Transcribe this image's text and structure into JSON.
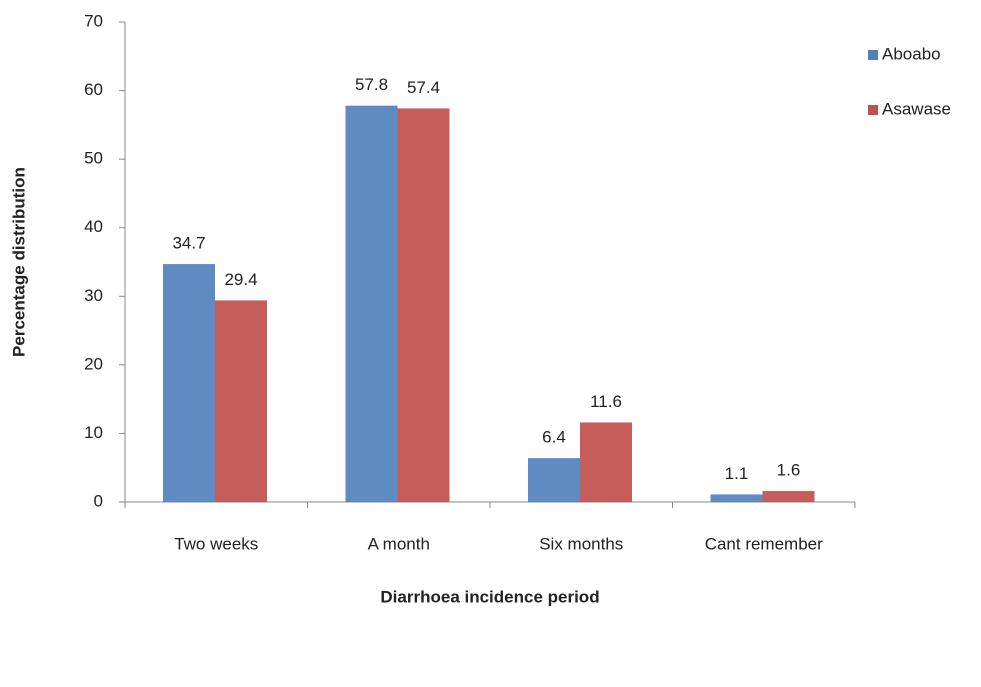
{
  "chart_data": {
    "type": "bar",
    "x_label": "Diarrhoea incidence period",
    "y_label": "Percentage distribution",
    "categories": [
      "Two weeks",
      "A month",
      "Six months",
      "Cant remember"
    ],
    "series": [
      {
        "name": "Aboabo",
        "color": "#4f81bd",
        "values": [
          34.7,
          57.8,
          6.4,
          1.1
        ]
      },
      {
        "name": "Asawase",
        "color": "#c0504d",
        "values": [
          29.4,
          57.4,
          11.6,
          1.6
        ]
      }
    ],
    "ylim": [
      0,
      70
    ],
    "yticks": [
      0,
      10,
      20,
      30,
      40,
      50,
      60,
      70
    ],
    "legend": "right"
  }
}
